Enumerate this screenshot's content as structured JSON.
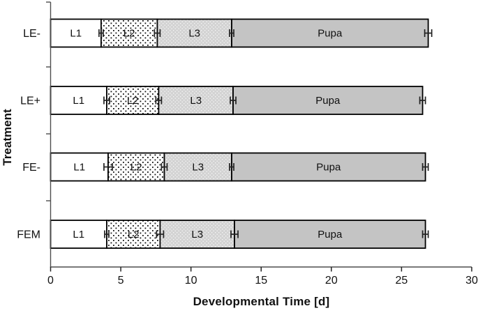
{
  "axes": {
    "x_title": "Developmental Time [d]",
    "y_title": "Treatment",
    "x_ticks": [
      0,
      5,
      10,
      15,
      20,
      25,
      30
    ],
    "x_range": [
      0,
      30
    ],
    "grid": false,
    "legend": "none (segments labeled inline)"
  },
  "colors": {
    "background": "#ffffff",
    "bar_border": "#000000",
    "l1_fill": "#ffffff",
    "l2_dot": "#111111",
    "l3_base": "#d3d3d3",
    "l3_dot": "#ffffff",
    "pupa_gray": "#c4c4c4",
    "axis_line": "#4d4d4d",
    "tick_color": "#222222",
    "text_color": "#111111"
  },
  "chart_data": {
    "type": "bar",
    "orientation": "horizontal",
    "stacked": true,
    "title": "",
    "xlabel": "Developmental Time [d]",
    "ylabel": "Treatment",
    "xlim": [
      0,
      30
    ],
    "categories": [
      "LE-",
      "LE+",
      "FE-",
      "FEM"
    ],
    "series": [
      {
        "name": "L1",
        "pattern": "solid-white",
        "values": [
          3.6,
          4.0,
          4.1,
          4.0
        ]
      },
      {
        "name": "L2",
        "pattern": "black-dots",
        "values": [
          4.0,
          3.7,
          4.0,
          3.8
        ]
      },
      {
        "name": "L3",
        "pattern": "gray-dots",
        "values": [
          5.3,
          5.3,
          4.8,
          5.3
        ]
      },
      {
        "name": "Pupa",
        "pattern": "solid-gray",
        "values": [
          14.0,
          13.5,
          13.8,
          13.6
        ]
      }
    ],
    "cumulative_boundaries_days": [
      [
        3.6,
        7.6,
        12.9,
        26.9
      ],
      [
        4.0,
        7.7,
        13.0,
        26.5
      ],
      [
        4.1,
        8.1,
        12.9,
        26.7
      ],
      [
        4.0,
        7.8,
        13.1,
        26.7
      ]
    ],
    "error_bars_half_width_days": [
      [
        0.15,
        0.2,
        0.15,
        0.25
      ],
      [
        0.2,
        0.2,
        0.2,
        0.2
      ],
      [
        0.3,
        0.2,
        0.15,
        0.2
      ],
      [
        0.15,
        0.25,
        0.25,
        0.2
      ]
    ]
  }
}
